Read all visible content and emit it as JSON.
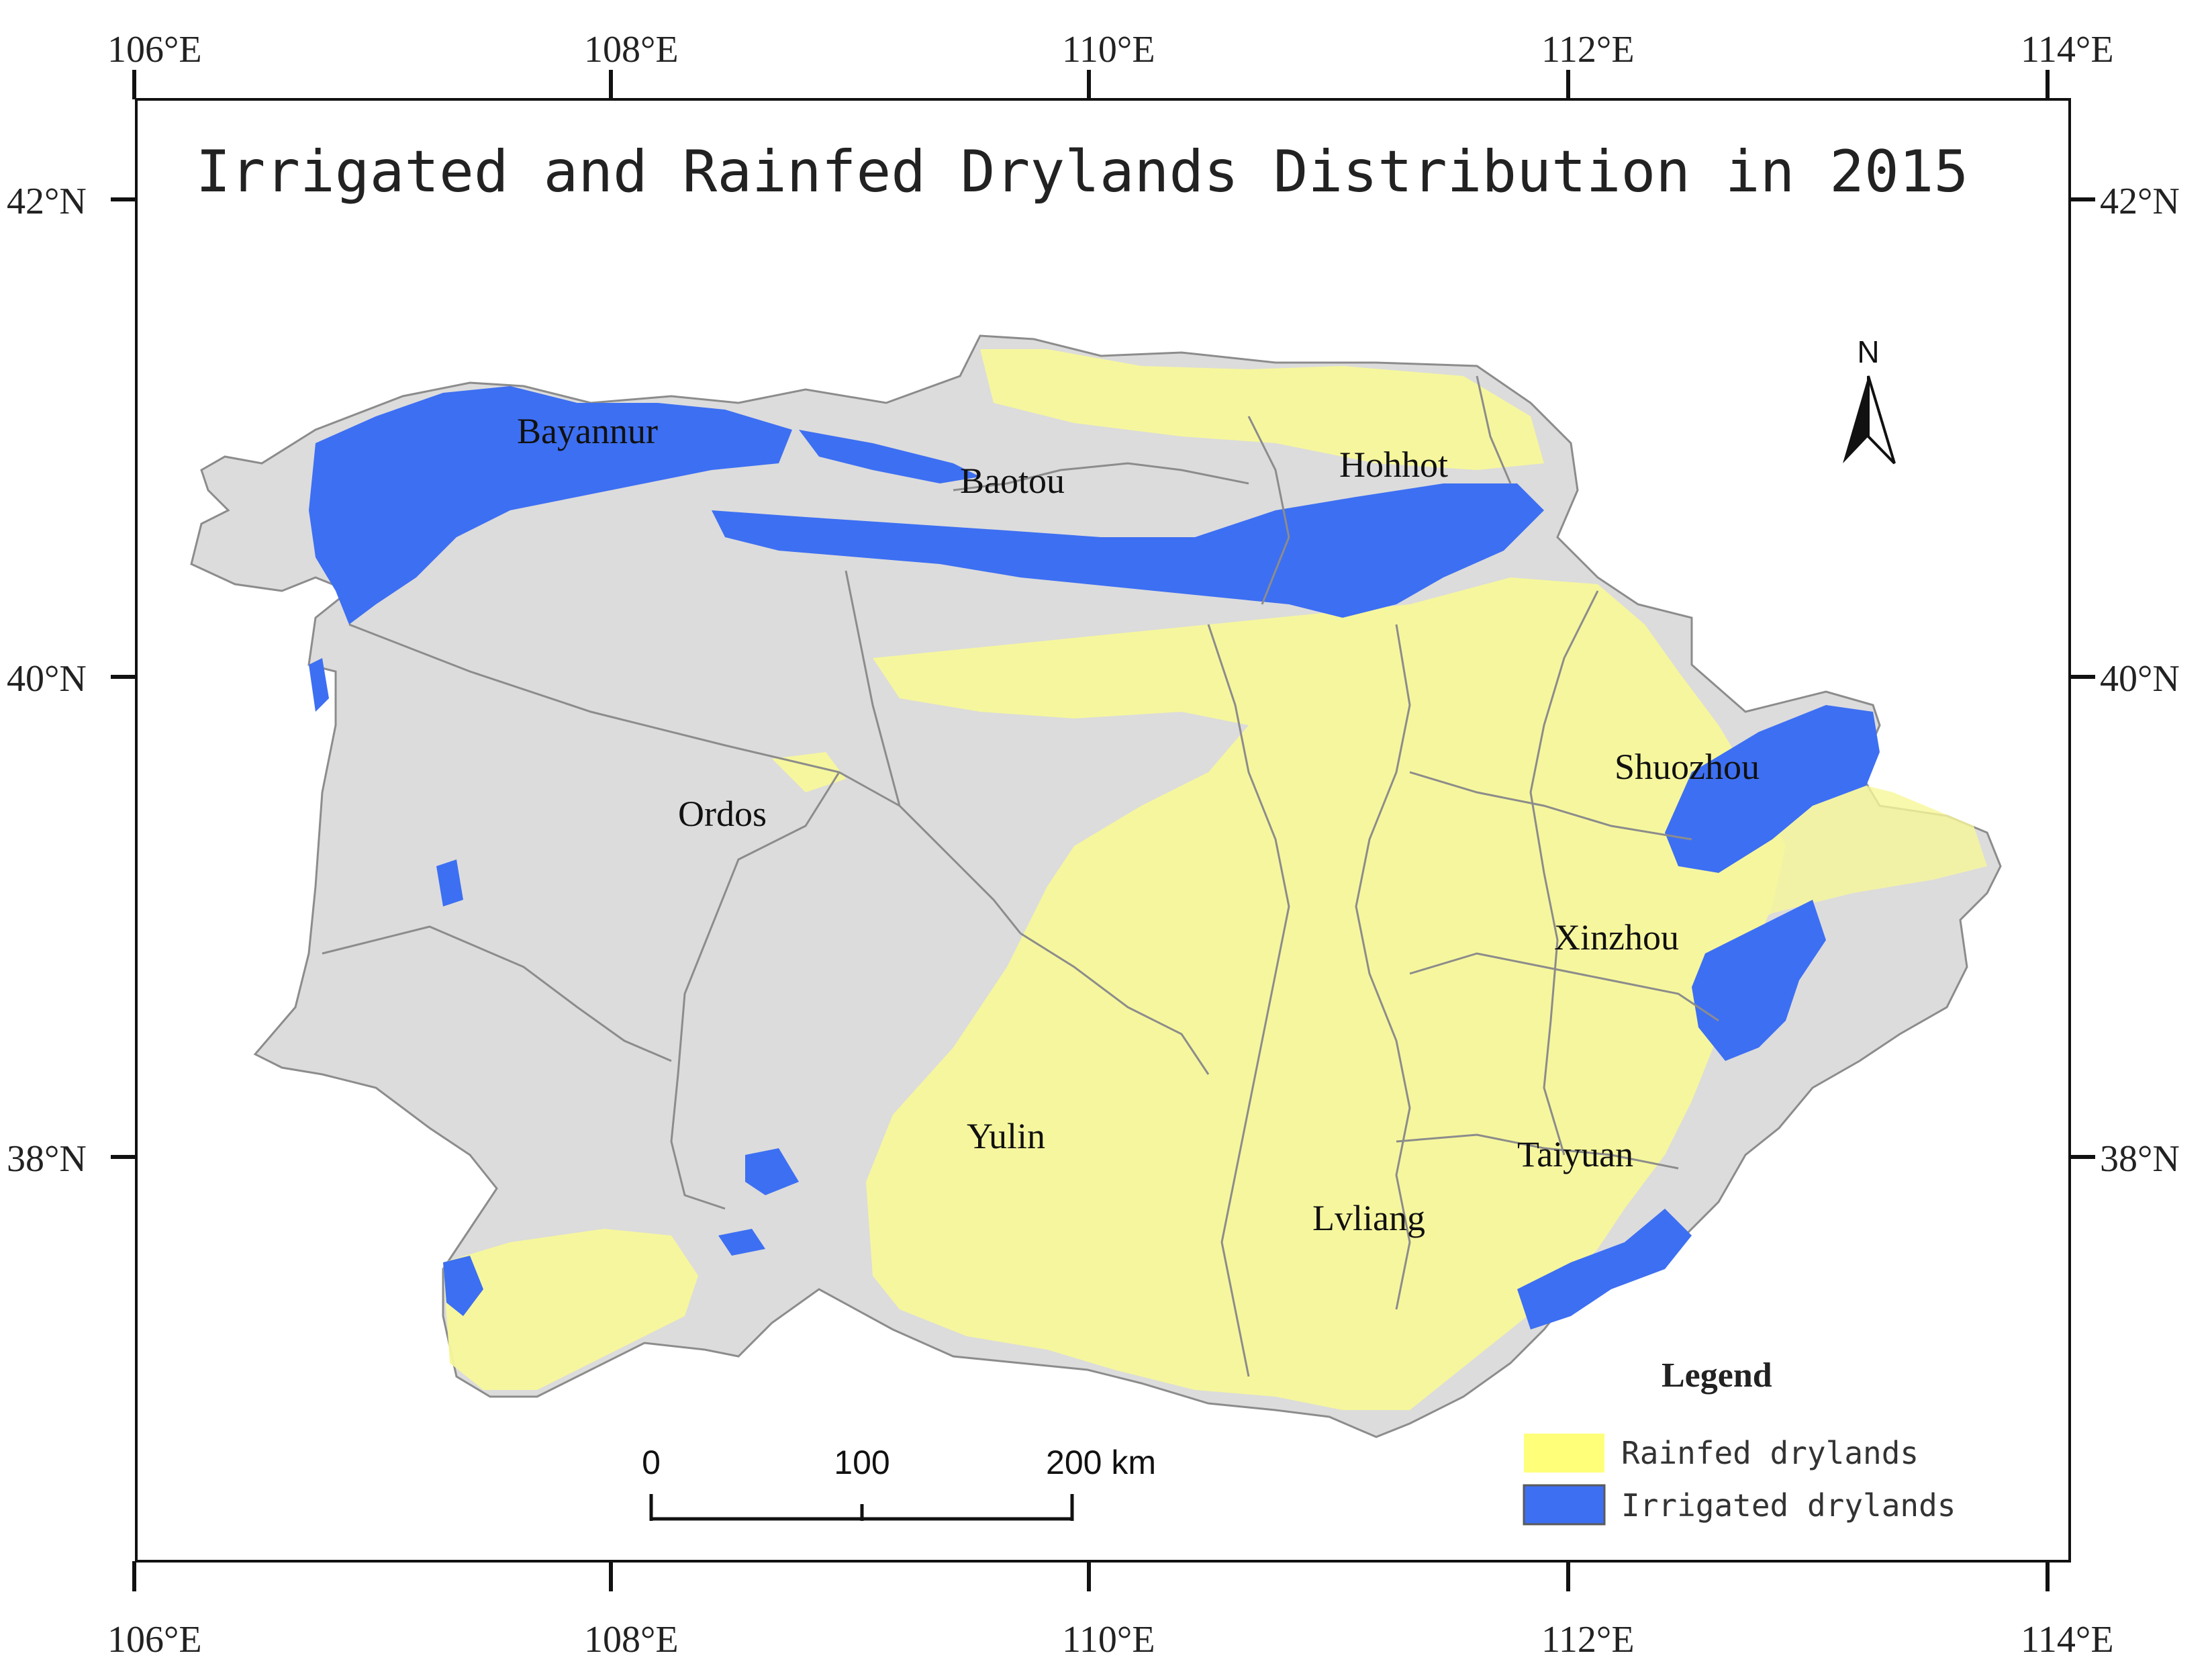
{
  "title": "Irrigated and Rainfed Drylands Distribution in 2015",
  "longitude_labels": [
    "106°E",
    "108°E",
    "110°E",
    "112°E",
    "114°E"
  ],
  "latitude_labels": [
    "42°N",
    "40°N",
    "38°N"
  ],
  "cities": [
    "Bayannur",
    "Baotou",
    "Hohhot",
    "Ordos",
    "Shuozhou",
    "Xinzhou",
    "Yulin",
    "Taiyuan",
    "Lvliang"
  ],
  "north_label": "N",
  "scale_bar": {
    "labels": [
      "0",
      "100",
      "200 km"
    ]
  },
  "legend": {
    "title": "Legend",
    "items": [
      {
        "label": "Rainfed drylands",
        "color": "#ffff7a"
      },
      {
        "label": "Irrigated drylands",
        "color": "#3d6ff2"
      }
    ]
  },
  "colors": {
    "background_land": "#dcdcdc",
    "rainfed": "#f7f79a",
    "irrigated": "#3d6ff2",
    "boundary": "#8c8c8c"
  }
}
